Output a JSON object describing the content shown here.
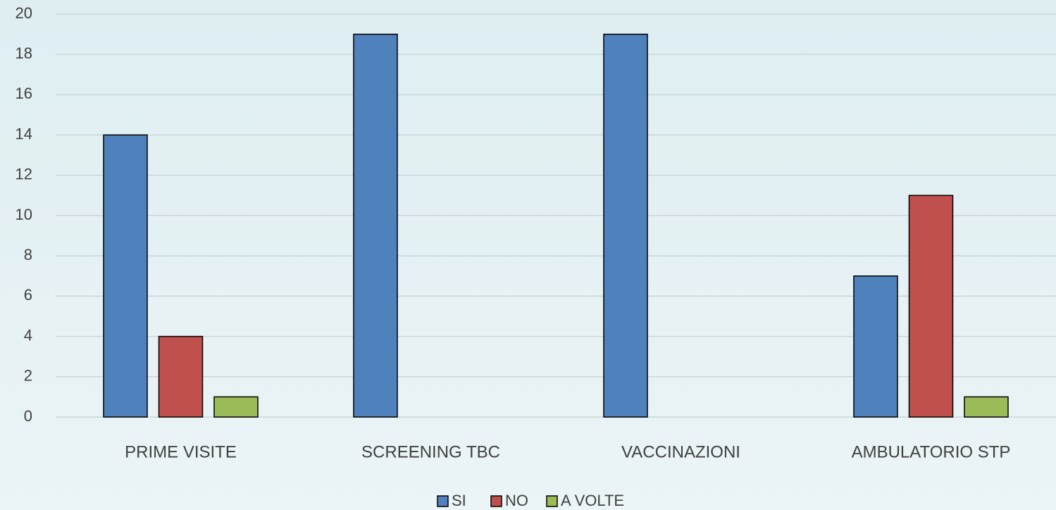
{
  "chart_data": {
    "type": "bar",
    "categories": [
      "PRIME VISITE",
      "SCREENING TBC",
      "VACCINAZIONI",
      "AMBULATORIO STP"
    ],
    "series": [
      {
        "name": "SI",
        "color": "#4f81bd",
        "values": [
          14,
          19,
          19,
          7
        ]
      },
      {
        "name": "NO",
        "color": "#c0504d",
        "values": [
          4,
          0,
          0,
          11
        ]
      },
      {
        "name": "A VOLTE",
        "color": "#9bbb59",
        "values": [
          1,
          0,
          0,
          1
        ]
      }
    ],
    "ylim": [
      0,
      20
    ],
    "yticks": [
      0,
      2,
      4,
      6,
      8,
      10,
      12,
      14,
      16,
      18,
      20
    ],
    "grid": true,
    "legend": "bottom"
  }
}
